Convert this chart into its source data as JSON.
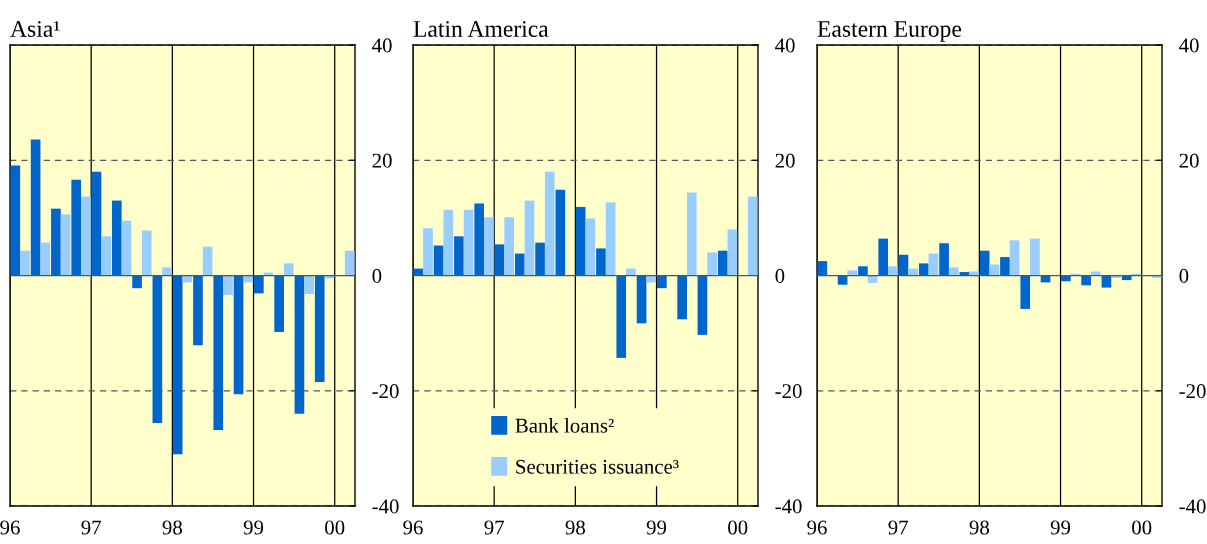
{
  "chart_data": [
    {
      "type": "bar",
      "title": "Asia¹",
      "x": [
        1996.125,
        1996.375,
        1996.625,
        1996.875,
        1997.125,
        1997.375,
        1997.625,
        1997.875,
        1998.125,
        1998.375,
        1998.625,
        1998.875,
        1999.125,
        1999.375,
        1999.625,
        1999.875,
        2000.125
      ],
      "series": [
        {
          "color": "#0066cc",
          "values": [
            19.1,
            23.6,
            11.6,
            16.6,
            18.0,
            13.0,
            -2.2,
            -25.6,
            -31.0,
            -12.1,
            -26.8,
            -20.6,
            -3.1,
            -9.8,
            -24.0,
            -18.5,
            0
          ]
        },
        {
          "color": "#99ccff",
          "values": [
            4.3,
            5.7,
            10.6,
            13.7,
            6.8,
            9.5,
            7.8,
            1.4,
            -1.2,
            5.0,
            -3.4,
            -1.2,
            0.5,
            2.1,
            -3.2,
            -0.5,
            4.3
          ]
        }
      ],
      "xlim": [
        1996,
        2000.25
      ],
      "xticks": [
        {
          "value": 1996,
          "label": "96"
        },
        {
          "value": 1997,
          "label": "97"
        },
        {
          "value": 1998,
          "label": "98"
        },
        {
          "value": 1999,
          "label": "99"
        },
        {
          "value": 2000,
          "label": "00"
        }
      ],
      "ylim": [
        -40,
        40
      ],
      "yticks": [
        -40,
        -20,
        0,
        20,
        40
      ],
      "grid": true
    },
    {
      "type": "bar",
      "title": "Latin America",
      "x": [
        1996.125,
        1996.375,
        1996.625,
        1996.875,
        1997.125,
        1997.375,
        1997.625,
        1997.875,
        1998.125,
        1998.375,
        1998.625,
        1998.875,
        1999.125,
        1999.375,
        1999.625,
        1999.875,
        2000.125
      ],
      "series": [
        {
          "name": "Bank loans²",
          "color": "#0066cc",
          "values": [
            1.2,
            5.2,
            6.8,
            12.5,
            5.4,
            3.8,
            5.7,
            14.9,
            11.9,
            4.7,
            -14.3,
            -8.3,
            -2.2,
            -7.6,
            -10.3,
            4.3,
            0
          ]
        },
        {
          "name": "Securities issuance³",
          "color": "#99ccff",
          "values": [
            8.2,
            11.4,
            11.4,
            10.1,
            10.1,
            13.0,
            18.0,
            0,
            9.9,
            12.7,
            1.2,
            -1.2,
            0,
            14.4,
            4.0,
            8.0,
            13.7
          ]
        }
      ],
      "xlim": [
        1996,
        2000.25
      ],
      "xticks": [
        {
          "value": 1996,
          "label": "96"
        },
        {
          "value": 1997,
          "label": "97"
        },
        {
          "value": 1998,
          "label": "98"
        },
        {
          "value": 1999,
          "label": "99"
        },
        {
          "value": 2000,
          "label": "00"
        }
      ],
      "ylim": [
        -40,
        40
      ],
      "yticks": [
        -40,
        -20,
        0,
        20,
        40
      ],
      "grid": true,
      "legend": "bottom"
    },
    {
      "type": "bar",
      "title": "Eastern Europe",
      "x": [
        1996.125,
        1996.375,
        1996.625,
        1996.875,
        1997.125,
        1997.375,
        1997.625,
        1997.875,
        1998.125,
        1998.375,
        1998.625,
        1998.875,
        1999.125,
        1999.375,
        1999.625,
        1999.875,
        2000.125
      ],
      "series": [
        {
          "color": "#0066cc",
          "values": [
            2.5,
            -1.6,
            1.6,
            6.4,
            3.6,
            2.1,
            5.6,
            0.6,
            4.3,
            3.2,
            -5.8,
            -1.2,
            -1.0,
            -1.7,
            -2.1,
            -0.8,
            0
          ]
        },
        {
          "color": "#99ccff",
          "values": [
            0,
            0.9,
            -1.3,
            1.6,
            1.2,
            3.8,
            1.4,
            0.7,
            1.9,
            6.1,
            6.4,
            0,
            0.3,
            0.7,
            -0.4,
            0.3,
            -0.4
          ]
        }
      ],
      "xlim": [
        1996,
        2000.25
      ],
      "xticks": [
        {
          "value": 1996,
          "label": "96"
        },
        {
          "value": 1997,
          "label": "97"
        },
        {
          "value": 1998,
          "label": "98"
        },
        {
          "value": 1999,
          "label": "99"
        },
        {
          "value": 2000,
          "label": "00"
        }
      ],
      "ylim": [
        -40,
        40
      ],
      "yticks": [
        -40,
        -20,
        0,
        20,
        40
      ],
      "grid": true
    }
  ]
}
